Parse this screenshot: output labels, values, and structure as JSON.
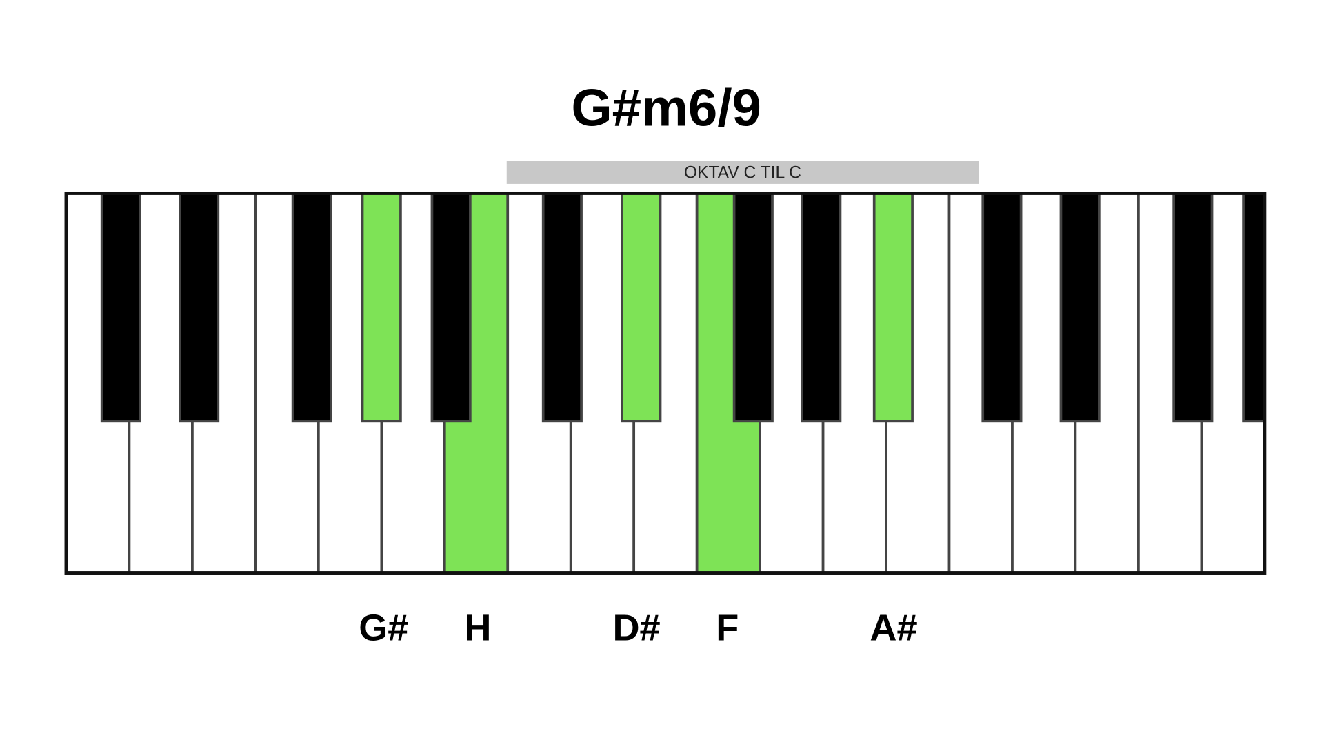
{
  "title": "G#m6/9",
  "octave_label": "OKTAV C TIL C",
  "notes": [
    "G#",
    "H",
    "D#",
    "F",
    "A#"
  ]
}
